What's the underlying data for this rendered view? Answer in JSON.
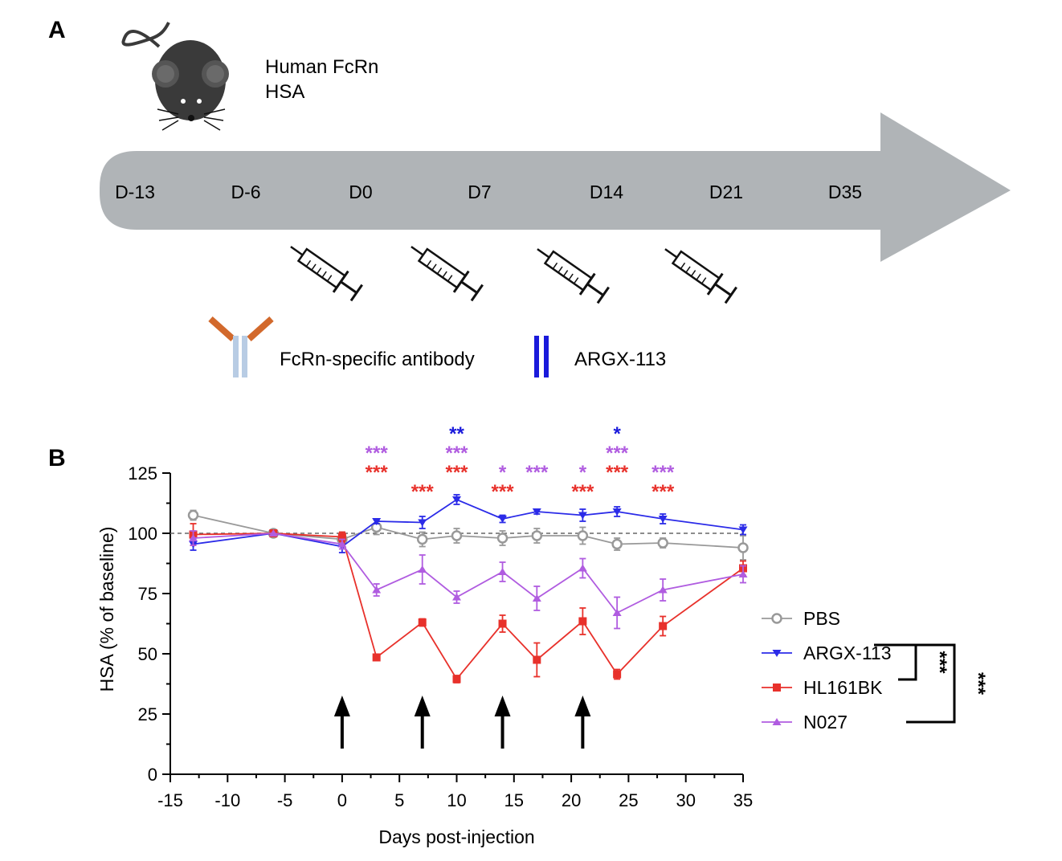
{
  "panel_a": {
    "label": "A",
    "mouse_text": [
      "Human FcRn",
      "HSA"
    ],
    "timeline_days": [
      "D-13",
      "D-6",
      "D0",
      "D7",
      "D14",
      "D21",
      "D35"
    ],
    "injection_days": [
      "D0",
      "D7",
      "D14",
      "D21"
    ],
    "legend": {
      "antibody": "FcRn-specific antibody",
      "argx": "ARGX-113"
    },
    "icons": [
      "mouse-icon",
      "syringe-icon",
      "antibody-icon",
      "argx-113-icon"
    ],
    "colors": {
      "arrow": "#b0b4b7",
      "antibody_arms": "#d2692c",
      "antibody_stem": "#b8cce4",
      "argx": "#1a1adb",
      "mouse": "#3a3a3a"
    }
  },
  "panel_b": {
    "label": "B",
    "chart_data": {
      "type": "line",
      "xlabel": "Days post-injection",
      "ylabel": "HSA (% of baseline)",
      "xlim": [
        -15,
        35
      ],
      "ylim": [
        0,
        125
      ],
      "xticks": [
        "-15",
        "-10",
        "-5",
        "0",
        "5",
        "10",
        "15",
        "20",
        "25",
        "30",
        "35"
      ],
      "yticks": [
        "0",
        "25",
        "50",
        "75",
        "100",
        "125"
      ],
      "reference_line": 100,
      "legend_position": "right",
      "injection_arrows_x": [
        0,
        7,
        14,
        21
      ],
      "series": [
        {
          "name": "PBS",
          "color": "#999999",
          "marker": "circle-open",
          "x": [
            -13,
            -6,
            0,
            3,
            7,
            10,
            14,
            17,
            21,
            24,
            28,
            35
          ],
          "y": [
            107.5,
            100,
            97.5,
            102.5,
            97.5,
            99,
            98,
            99,
            99,
            95.5,
            96,
            94
          ],
          "err": [
            2,
            0,
            3,
            3,
            3,
            3,
            3,
            3,
            3.5,
            2.5,
            2,
            5
          ]
        },
        {
          "name": "ARGX-113",
          "color": "#2b2be8",
          "marker": "triangle-down",
          "x": [
            -13,
            -6,
            0,
            3,
            7,
            10,
            14,
            17,
            21,
            24,
            28,
            35
          ],
          "y": [
            95.5,
            100,
            94.5,
            105,
            104.5,
            114,
            106,
            109,
            107.5,
            109,
            106,
            101.5
          ],
          "err": [
            2.5,
            0,
            2.5,
            1,
            2.5,
            2,
            1.5,
            1,
            2.5,
            2,
            2,
            2
          ]
        },
        {
          "name": "HL161BK",
          "color": "#e8312b",
          "marker": "square",
          "x": [
            -13,
            -6,
            0,
            3,
            7,
            10,
            14,
            17,
            21,
            24,
            28,
            35
          ],
          "y": [
            99.5,
            100,
            98.5,
            48.5,
            63,
            39.5,
            62.5,
            47.5,
            63.5,
            41.5,
            61.5,
            85.5
          ],
          "err": [
            4.5,
            0,
            2,
            1,
            1.5,
            1.5,
            3.5,
            7,
            5.5,
            2,
            4,
            3
          ]
        },
        {
          "name": "N027",
          "color": "#b05ce0",
          "marker": "triangle-up",
          "x": [
            -13,
            -6,
            0,
            3,
            7,
            10,
            14,
            17,
            21,
            24,
            28,
            35
          ],
          "y": [
            98,
            100,
            95.5,
            76.5,
            85,
            73.5,
            84,
            73,
            85.5,
            67,
            76.5,
            83
          ],
          "err": [
            3,
            0,
            2,
            2.5,
            6,
            2.5,
            4,
            5,
            4,
            6.5,
            4.5,
            3.5
          ]
        }
      ],
      "annotations": [
        {
          "x": 10,
          "row": 3,
          "text": "**",
          "color": "#1a1adb"
        },
        {
          "x": 24,
          "row": 3,
          "text": "*",
          "color": "#1a1adb"
        },
        {
          "x": 3,
          "row": 2,
          "text": "***",
          "color": "#b05ce0"
        },
        {
          "x": 10,
          "row": 2,
          "text": "***",
          "color": "#b05ce0"
        },
        {
          "x": 24,
          "row": 2,
          "text": "***",
          "color": "#b05ce0"
        },
        {
          "x": 14,
          "row": 1,
          "text": "*",
          "color": "#b05ce0"
        },
        {
          "x": 17,
          "row": 1,
          "text": "***",
          "color": "#b05ce0"
        },
        {
          "x": 21,
          "row": 1,
          "text": "*",
          "color": "#b05ce0"
        },
        {
          "x": 28,
          "row": 1,
          "text": "***",
          "color": "#b05ce0"
        },
        {
          "x": 3,
          "row": 1,
          "text": "***",
          "color": "#e8312b"
        },
        {
          "x": 10,
          "row": 1,
          "text": "***",
          "color": "#e8312b"
        },
        {
          "x": 24,
          "row": 1,
          "text": "***",
          "color": "#e8312b"
        },
        {
          "x": 7,
          "row": 0,
          "text": "***",
          "color": "#e8312b"
        },
        {
          "x": 14,
          "row": 0,
          "text": "***",
          "color": "#e8312b"
        },
        {
          "x": 21,
          "row": 0,
          "text": "***",
          "color": "#e8312b"
        },
        {
          "x": 28,
          "row": 0,
          "text": "***",
          "color": "#e8312b"
        }
      ],
      "brackets": [
        {
          "from": "ARGX-113",
          "to": "HL161BK",
          "text": "***"
        },
        {
          "from": "ARGX-113",
          "to": "N027",
          "text": "***"
        }
      ]
    }
  }
}
